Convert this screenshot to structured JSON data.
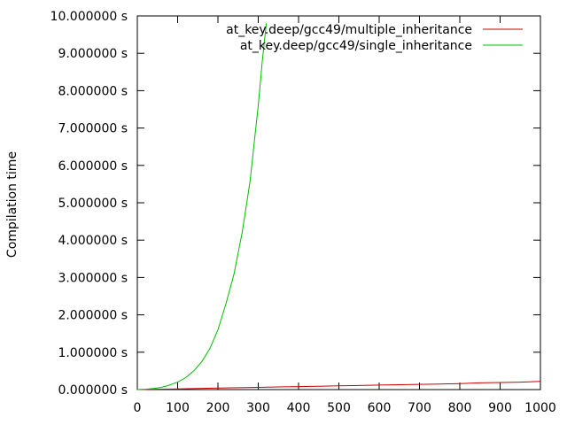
{
  "chart_data": {
    "type": "line",
    "ylabel": "Compilation time",
    "xlim": [
      0,
      1000
    ],
    "ylim": [
      0,
      10
    ],
    "grid": false,
    "legend_position": "top-right",
    "x_ticks": [
      0,
      100,
      200,
      300,
      400,
      500,
      600,
      700,
      800,
      900,
      1000
    ],
    "y_ticks": [
      {
        "value": 0,
        "label": "0.000000 s"
      },
      {
        "value": 1,
        "label": "1.000000 s"
      },
      {
        "value": 2,
        "label": "2.000000 s"
      },
      {
        "value": 3,
        "label": "3.000000 s"
      },
      {
        "value": 4,
        "label": "4.000000 s"
      },
      {
        "value": 5,
        "label": "5.000000 s"
      },
      {
        "value": 6,
        "label": "6.000000 s"
      },
      {
        "value": 7,
        "label": "7.000000 s"
      },
      {
        "value": 8,
        "label": "8.000000 s"
      },
      {
        "value": 9,
        "label": "9.000000 s"
      },
      {
        "value": 10,
        "label": "10.000000 s"
      }
    ],
    "series": [
      {
        "name": "at_key.deep/gcc49/multiple_inheritance",
        "color": "#cc0000",
        "x": [
          0,
          50,
          100,
          150,
          200,
          250,
          300,
          350,
          400,
          450,
          500,
          550,
          600,
          650,
          700,
          750,
          800,
          850,
          900,
          950,
          1000
        ],
        "y": [
          0.0,
          0.01,
          0.02,
          0.03,
          0.04,
          0.05,
          0.06,
          0.07,
          0.08,
          0.09,
          0.1,
          0.11,
          0.12,
          0.13,
          0.14,
          0.15,
          0.16,
          0.18,
          0.19,
          0.2,
          0.22
        ]
      },
      {
        "name": "at_key.deep/gcc49/single_inheritance",
        "color": "#00bb00",
        "x": [
          0,
          20,
          40,
          60,
          80,
          100,
          120,
          140,
          160,
          180,
          200,
          220,
          240,
          260,
          270,
          280,
          290,
          300,
          310,
          320
        ],
        "y": [
          0.0,
          0.01,
          0.03,
          0.06,
          0.12,
          0.2,
          0.32,
          0.5,
          0.75,
          1.1,
          1.6,
          2.3,
          3.1,
          4.2,
          4.9,
          5.6,
          6.6,
          7.6,
          8.8,
          9.8
        ]
      }
    ]
  }
}
